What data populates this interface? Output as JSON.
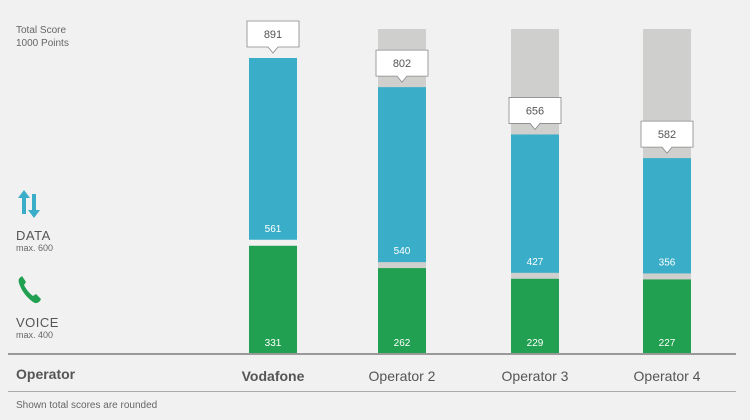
{
  "total_label": {
    "line1": "Total Score",
    "line2": "1000 Points"
  },
  "data_category": {
    "icon": "up-down-arrows-icon",
    "title": "DATA",
    "sub": "max. 600",
    "color": "#3aaec8"
  },
  "voice_category": {
    "icon": "phone-icon",
    "title": "VOICE",
    "sub": "max. 400",
    "color": "#20a050"
  },
  "operator_header": "Operator",
  "footnote": "Shown total scores are rounded",
  "chart_data": {
    "type": "bar",
    "stacked": true,
    "categories": [
      "Vodafone",
      "Operator 2",
      "Operator 3",
      "Operator 4"
    ],
    "highlight_category": "Vodafone",
    "series": [
      {
        "name": "VOICE",
        "values": [
          331,
          262,
          229,
          227
        ],
        "color": "#20a050",
        "max": 400
      },
      {
        "name": "DATA",
        "values": [
          561,
          540,
          427,
          356
        ],
        "color": "#3aaec8",
        "max": 600
      }
    ],
    "totals": [
      891,
      802,
      656,
      582
    ],
    "ylim": [
      0,
      1000
    ],
    "background_bar_color": "#cfcfcd"
  }
}
